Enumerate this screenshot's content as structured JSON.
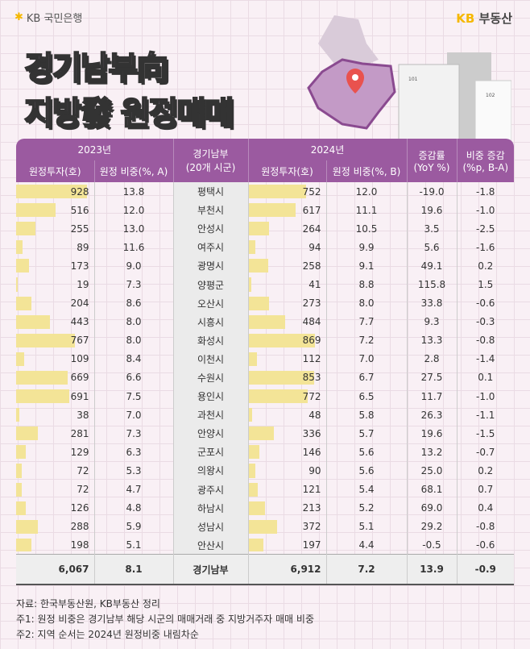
{
  "brand_left": "KB 국민은행",
  "brand_right": {
    "kb": "KB",
    "text": "부동산"
  },
  "title": {
    "line1": "경기남부向",
    "line2": "지방發 원정매매"
  },
  "map": {
    "building_labels": [
      "101",
      "102"
    ]
  },
  "headers": {
    "y2023": "2023년",
    "region": "경기남부\n(20개 시군)",
    "y2024": "2024년",
    "yoy": "증감률\n(YoY %)",
    "share_change": "비중 증감\n(%p, B-A)",
    "invest_2023": "원정투자(호)",
    "share_2023": "원정 비중(%, A)",
    "invest_2024": "원정투자(호)",
    "share_2024": "원정 비중(%, B)"
  },
  "colors": {
    "header": "#9b5aa0",
    "bar": "#f3e497"
  },
  "rows": [
    {
      "inv23": "928",
      "sh23": "13.8",
      "region": "평택시",
      "inv24": "752",
      "sh24": "12.0",
      "yoy": "-19.0",
      "chg": "-1.8"
    },
    {
      "inv23": "516",
      "sh23": "12.0",
      "region": "부천시",
      "inv24": "617",
      "sh24": "11.1",
      "yoy": "19.6",
      "chg": "-1.0"
    },
    {
      "inv23": "255",
      "sh23": "13.0",
      "region": "안성시",
      "inv24": "264",
      "sh24": "10.5",
      "yoy": "3.5",
      "chg": "-2.5"
    },
    {
      "inv23": "89",
      "sh23": "11.6",
      "region": "여주시",
      "inv24": "94",
      "sh24": "9.9",
      "yoy": "5.6",
      "chg": "-1.6"
    },
    {
      "inv23": "173",
      "sh23": "9.0",
      "region": "광명시",
      "inv24": "258",
      "sh24": "9.1",
      "yoy": "49.1",
      "chg": "0.2"
    },
    {
      "inv23": "19",
      "sh23": "7.3",
      "region": "양평군",
      "inv24": "41",
      "sh24": "8.8",
      "yoy": "115.8",
      "chg": "1.5"
    },
    {
      "inv23": "204",
      "sh23": "8.6",
      "region": "오산시",
      "inv24": "273",
      "sh24": "8.0",
      "yoy": "33.8",
      "chg": "-0.6"
    },
    {
      "inv23": "443",
      "sh23": "8.0",
      "region": "시흥시",
      "inv24": "484",
      "sh24": "7.7",
      "yoy": "9.3",
      "chg": "-0.3"
    },
    {
      "inv23": "767",
      "sh23": "8.0",
      "region": "화성시",
      "inv24": "869",
      "sh24": "7.2",
      "yoy": "13.3",
      "chg": "-0.8"
    },
    {
      "inv23": "109",
      "sh23": "8.4",
      "region": "이천시",
      "inv24": "112",
      "sh24": "7.0",
      "yoy": "2.8",
      "chg": "-1.4"
    },
    {
      "inv23": "669",
      "sh23": "6.6",
      "region": "수원시",
      "inv24": "853",
      "sh24": "6.7",
      "yoy": "27.5",
      "chg": "0.1"
    },
    {
      "inv23": "691",
      "sh23": "7.5",
      "region": "용인시",
      "inv24": "772",
      "sh24": "6.5",
      "yoy": "11.7",
      "chg": "-1.0"
    },
    {
      "inv23": "38",
      "sh23": "7.0",
      "region": "과천시",
      "inv24": "48",
      "sh24": "5.8",
      "yoy": "26.3",
      "chg": "-1.1"
    },
    {
      "inv23": "281",
      "sh23": "7.3",
      "region": "안양시",
      "inv24": "336",
      "sh24": "5.7",
      "yoy": "19.6",
      "chg": "-1.5"
    },
    {
      "inv23": "129",
      "sh23": "6.3",
      "region": "군포시",
      "inv24": "146",
      "sh24": "5.6",
      "yoy": "13.2",
      "chg": "-0.7"
    },
    {
      "inv23": "72",
      "sh23": "5.3",
      "region": "의왕시",
      "inv24": "90",
      "sh24": "5.6",
      "yoy": "25.0",
      "chg": "0.2"
    },
    {
      "inv23": "72",
      "sh23": "4.7",
      "region": "광주시",
      "inv24": "121",
      "sh24": "5.4",
      "yoy": "68.1",
      "chg": "0.7"
    },
    {
      "inv23": "126",
      "sh23": "4.8",
      "region": "하남시",
      "inv24": "213",
      "sh24": "5.2",
      "yoy": "69.0",
      "chg": "0.4"
    },
    {
      "inv23": "288",
      "sh23": "5.9",
      "region": "성남시",
      "inv24": "372",
      "sh24": "5.1",
      "yoy": "29.2",
      "chg": "-0.8"
    },
    {
      "inv23": "198",
      "sh23": "5.1",
      "region": "안산시",
      "inv24": "197",
      "sh24": "4.4",
      "yoy": "-0.5",
      "chg": "-0.6"
    }
  ],
  "total": {
    "inv23": "6,067",
    "sh23": "8.1",
    "region": "경기남부",
    "inv24": "6,912",
    "sh24": "7.2",
    "yoy": "13.9",
    "chg": "-0.9"
  },
  "notes": [
    "자료: 한국부동산원, KB부동산 정리",
    "주1: 원정 비중은 경기남부 해당 시군의 매매거래 중 지방거주자 매매 비중",
    "주2: 지역 순서는 2024년 원정비중 내림차순"
  ]
}
